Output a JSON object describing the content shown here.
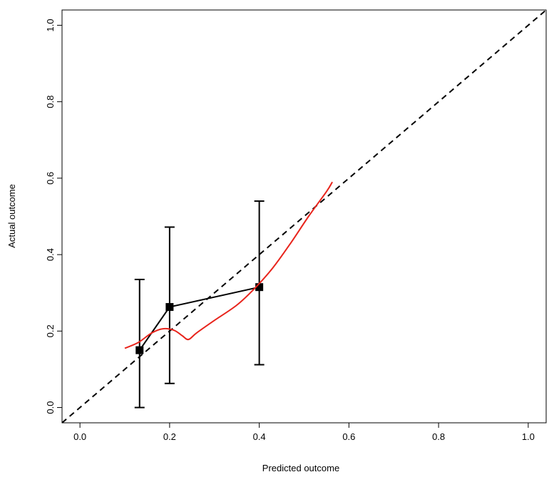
{
  "chart_data": {
    "type": "scatter",
    "xlabel": "Predicted outcome",
    "ylabel": "Actual outcome",
    "xlim": [
      -0.04,
      1.04
    ],
    "ylim": [
      -0.04,
      1.04
    ],
    "x_ticks": [
      0.0,
      0.2,
      0.4,
      0.6,
      0.8,
      1.0
    ],
    "y_ticks": [
      0.0,
      0.2,
      0.4,
      0.6,
      0.8,
      1.0
    ],
    "x_tick_labels": [
      "0.0",
      "0.2",
      "0.4",
      "0.6",
      "0.8",
      "1.0"
    ],
    "y_tick_labels": [
      "0.0",
      "0.2",
      "0.4",
      "0.6",
      "0.8",
      "1.0"
    ],
    "grid": false,
    "series": [
      {
        "style": "dashed-line",
        "color": "#000000",
        "x": [
          -0.04,
          1.04
        ],
        "y": [
          -0.04,
          1.04
        ]
      },
      {
        "style": "points-with-error-bars",
        "color": "#000000",
        "x": [
          0.133,
          0.2,
          0.4
        ],
        "y": [
          0.15,
          0.263,
          0.315
        ],
        "lower": [
          0.0,
          0.063,
          0.112
        ],
        "upper": [
          0.335,
          0.472,
          0.54
        ]
      },
      {
        "style": "smooth-curve",
        "color": "#e8241c",
        "x": [
          0.1,
          0.13,
          0.16,
          0.185,
          0.21,
          0.228,
          0.242,
          0.26,
          0.3,
          0.35,
          0.39,
          0.43,
          0.47,
          0.51,
          0.55,
          0.563
        ],
        "y": [
          0.155,
          0.17,
          0.195,
          0.206,
          0.202,
          0.188,
          0.178,
          0.195,
          0.228,
          0.268,
          0.312,
          0.365,
          0.43,
          0.5,
          0.565,
          0.59
        ]
      }
    ]
  }
}
